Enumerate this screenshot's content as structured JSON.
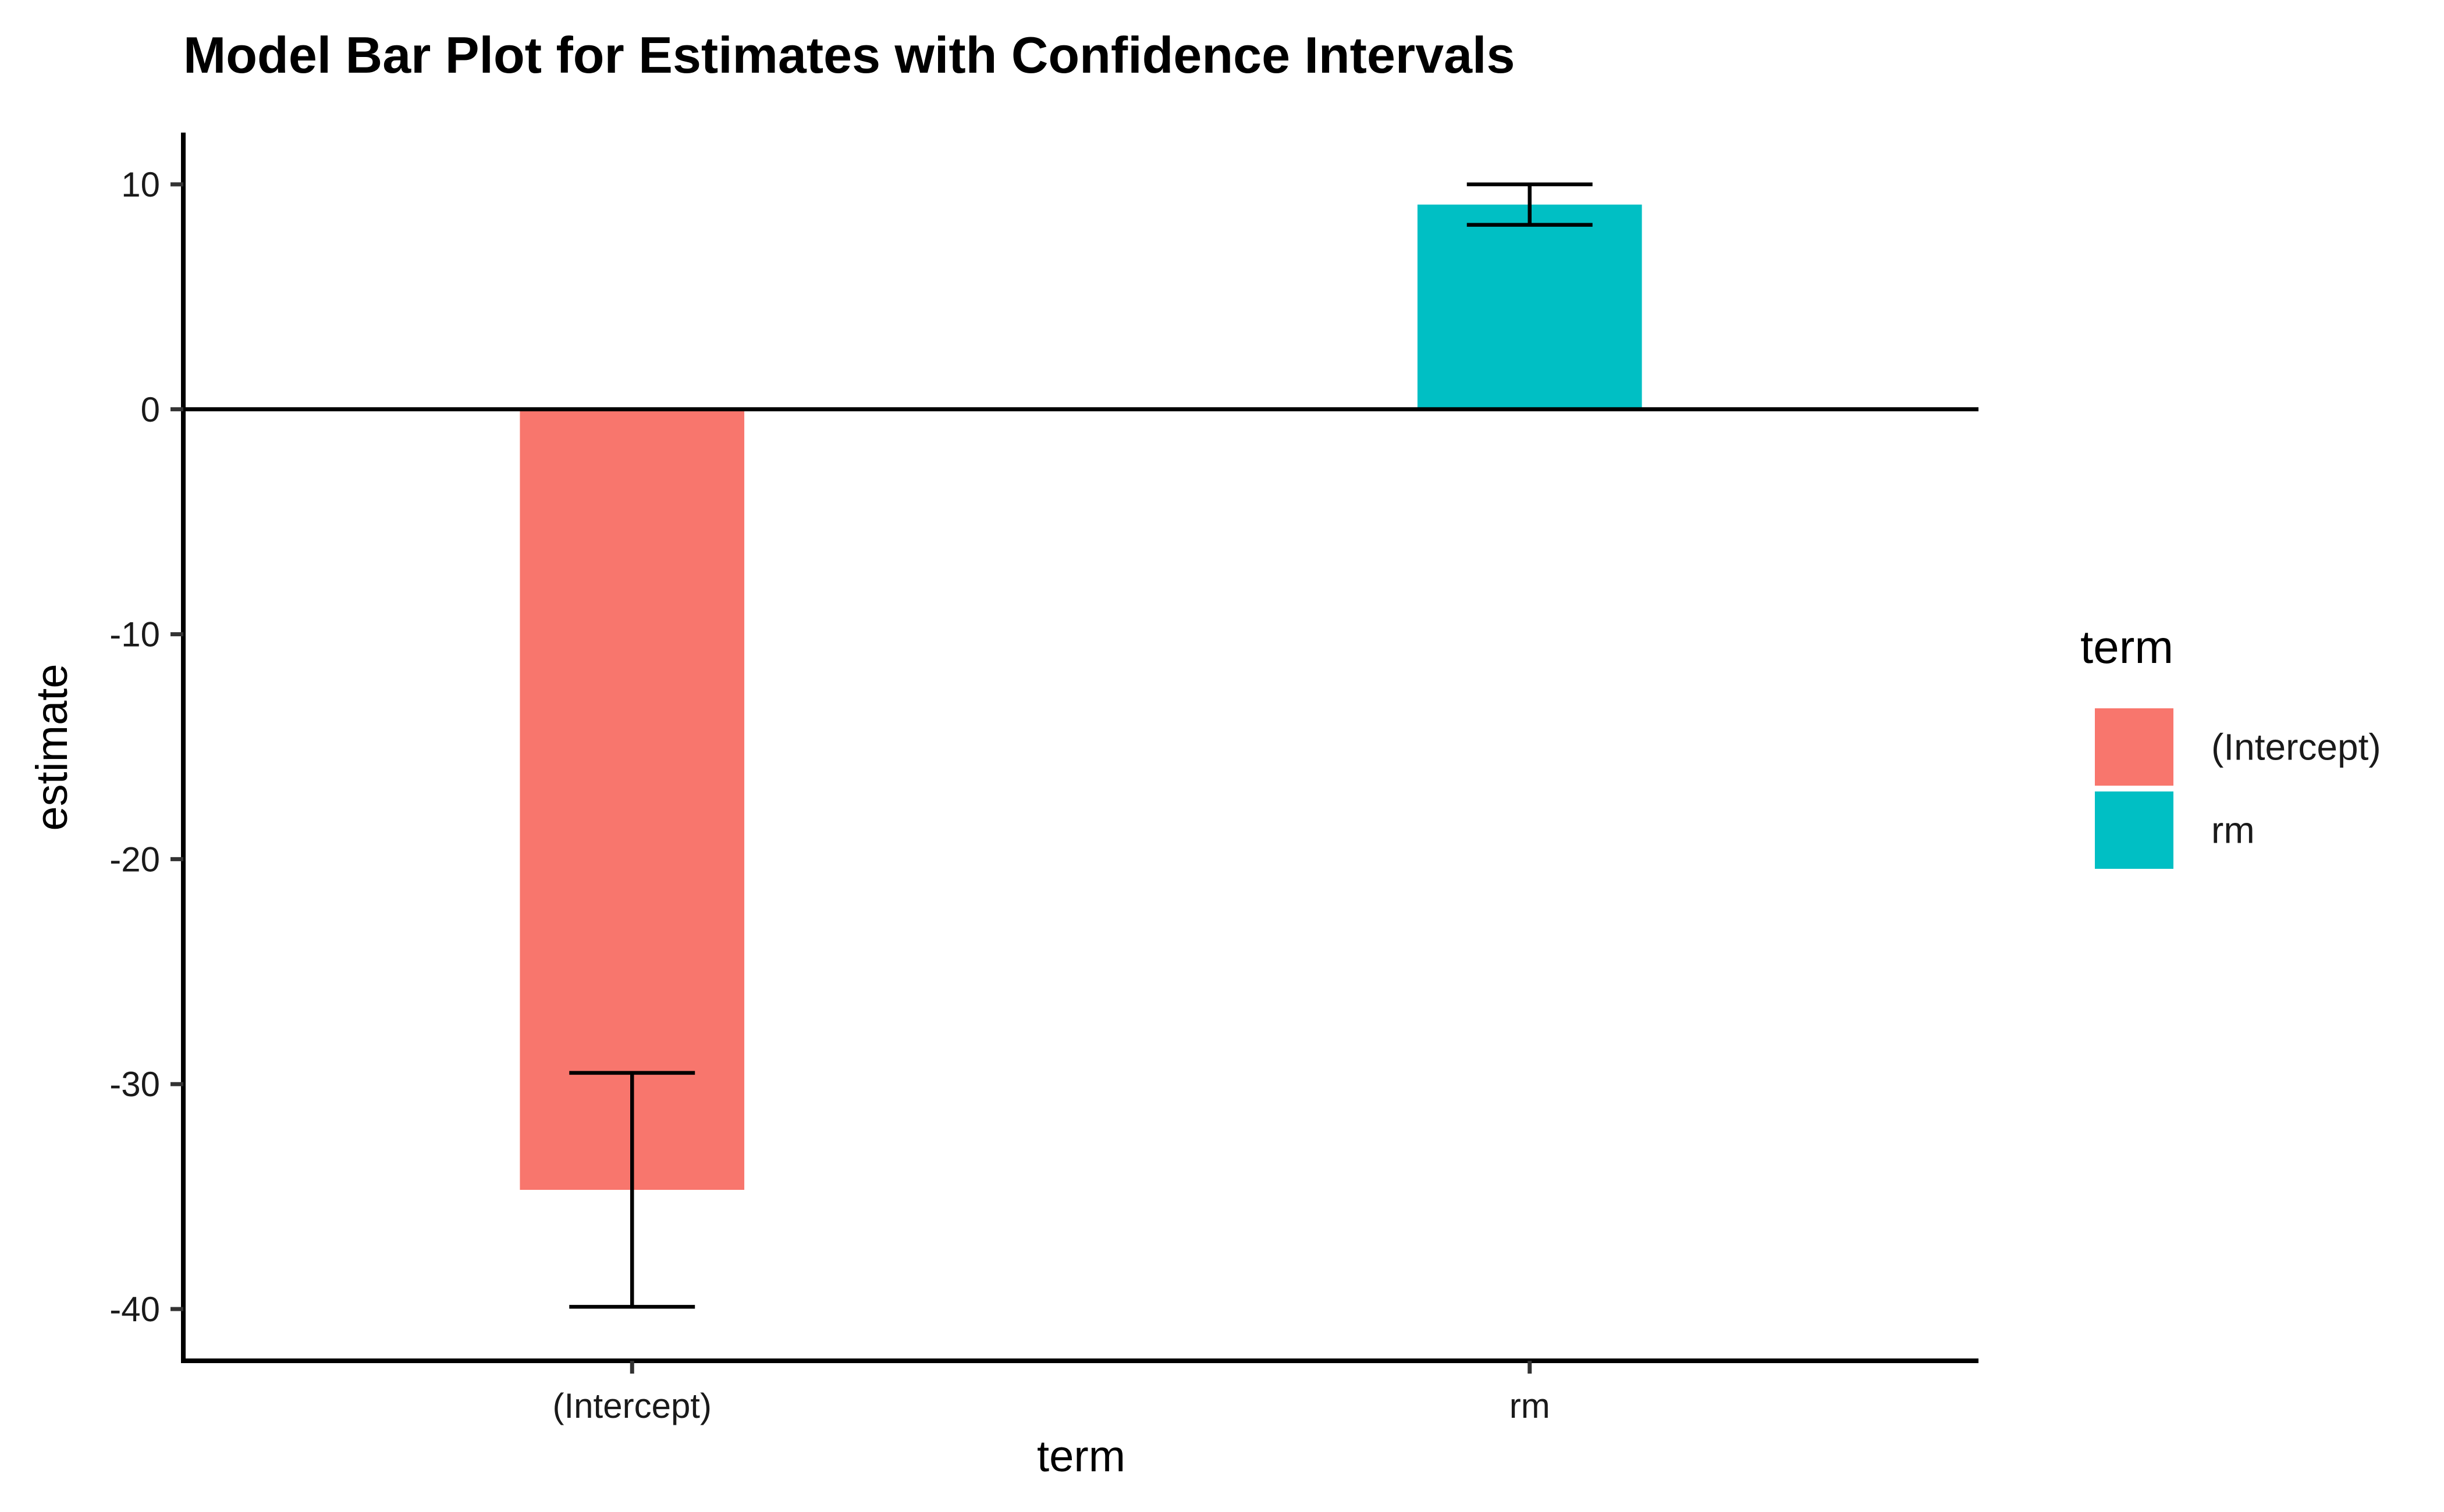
{
  "chart_data": {
    "type": "bar",
    "title": "Model Bar Plot for Estimates with Confidence Intervals",
    "xlabel": "term",
    "ylabel": "estimate",
    "categories": [
      "(Intercept)",
      "rm"
    ],
    "values": [
      -34.7,
      9.1
    ],
    "conf_low": [
      -39.9,
      8.2
    ],
    "conf_high": [
      -29.5,
      10.0
    ],
    "colors": [
      "#F8766D",
      "#00BFC4"
    ],
    "ylim": [
      -42.3,
      12.3
    ],
    "yticks": [
      10,
      0,
      -10,
      -20,
      -30,
      -40
    ],
    "ytick_labels": [
      "10",
      "0",
      "-10",
      "-20",
      "-30",
      "-40"
    ],
    "zero_line": true,
    "grid": false,
    "legend": {
      "title": "term",
      "position": "right",
      "entries": [
        "(Intercept)",
        "rm"
      ]
    }
  }
}
